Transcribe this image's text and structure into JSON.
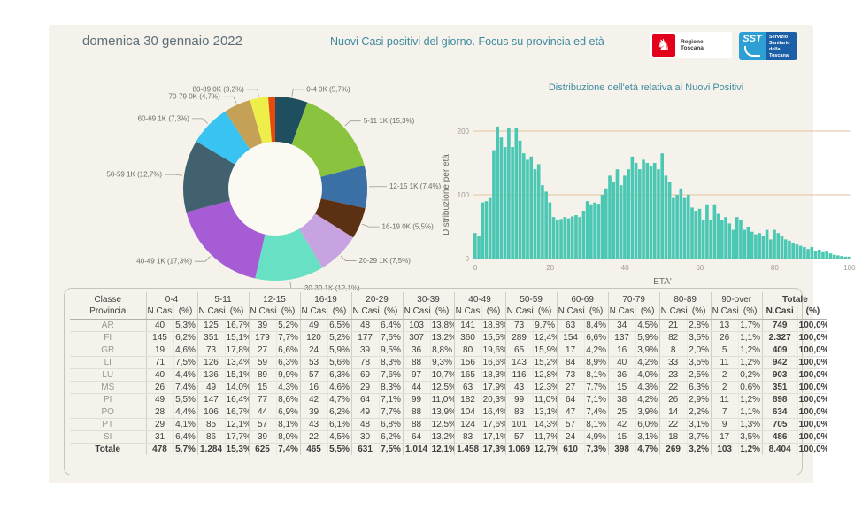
{
  "header": {
    "date_title": "domenica 30 gennaio 2022",
    "main_title": "Nuovi Casi positivi del giorno. Focus su provincia ed età"
  },
  "logos": {
    "regione": "Regione Toscana",
    "sst_abbr": "SST",
    "sst_text": "Servizio Sanitario della Toscana"
  },
  "colors": {
    "panel_bg": "#f4f2ea",
    "accent_teal": "#3f8aa0",
    "bar": "#4bc7b4",
    "gridline": "#e3c49f",
    "axis_text": "#a09a8f",
    "donut_hole": "#faf9f2",
    "label_text": "#6b6b64",
    "leader_line": "#9a9a92"
  },
  "chart_data": [
    {
      "type": "pie",
      "subtype": "donut",
      "categories": [
        "0-4",
        "5-11",
        "12-15",
        "16-19",
        "20-29",
        "30-39",
        "40-49",
        "50-59",
        "60-69",
        "70-79",
        "80-89",
        "90-over"
      ],
      "values": [
        478,
        1284,
        625,
        465,
        631,
        1014,
        1458,
        1069,
        610,
        398,
        269,
        103
      ],
      "labels": [
        "0-4 0K (5,7%)",
        "5-11 1K (15,3%)",
        "12-15 1K (7,4%)",
        "16-19 0K (5,5%)",
        "20-29 1K (7,5%)",
        "30-39 1K (12,1%)",
        "40-49 1K (17,3%)",
        "50-59 1K (12,7%)",
        "60-69 1K (7,3%)",
        "70-79 0K (4,7%)",
        "80-89 0K (3,2%)",
        null
      ],
      "colors": [
        "#1f4e5f",
        "#8ac33e",
        "#3a70a6",
        "#5c3012",
        "#c8a3e2",
        "#68e0c3",
        "#a55cd5",
        "#40616d",
        "#38c3f2",
        "#c5a057",
        "#edee49",
        "#e64a0e"
      ],
      "title": "",
      "legend_position": "none"
    },
    {
      "type": "bar",
      "subtype": "histogram",
      "title": "Distribuzione dell'età relativa ai Nuovi Positivi",
      "xlabel": "ETA'",
      "ylabel": "Distribuzione per età",
      "xticks": [
        0,
        20,
        40,
        60,
        80,
        100
      ],
      "yticks": [
        0,
        100,
        200
      ],
      "ylim": [
        0,
        215
      ],
      "grid": true,
      "values": [
        40,
        35,
        88,
        90,
        95,
        170,
        207,
        190,
        175,
        205,
        175,
        205,
        185,
        165,
        155,
        160,
        140,
        148,
        115,
        105,
        88,
        65,
        60,
        62,
        65,
        63,
        66,
        68,
        65,
        75,
        90,
        85,
        88,
        86,
        100,
        110,
        130,
        120,
        140,
        115,
        130,
        140,
        160,
        150,
        140,
        155,
        150,
        145,
        150,
        140,
        165,
        130,
        120,
        95,
        100,
        110,
        95,
        100,
        80,
        75,
        78,
        60,
        85,
        60,
        85,
        70,
        60,
        65,
        55,
        45,
        65,
        60,
        45,
        50,
        42,
        38,
        40,
        35,
        45,
        30,
        45,
        40,
        35,
        30,
        28,
        25,
        22,
        20,
        18,
        15,
        18,
        12,
        14,
        10,
        12,
        8,
        6,
        5,
        4,
        3,
        3
      ]
    }
  ],
  "table": {
    "corner_top": "Classe",
    "corner_bottom": "Provincia",
    "groups": [
      "0-4",
      "5-11",
      "12-15",
      "16-19",
      "20-29",
      "30-39",
      "40-49",
      "50-59",
      "60-69",
      "70-79",
      "80-89",
      "90-over",
      "Totale"
    ],
    "subheaders": [
      "N.Casi",
      "(%)"
    ],
    "rows": [
      {
        "label": "AR",
        "cells": [
          "40",
          "5,3%",
          "125",
          "16,7%",
          "39",
          "5,2%",
          "49",
          "6,5%",
          "48",
          "6,4%",
          "103",
          "13,8%",
          "141",
          "18,8%",
          "73",
          "9,7%",
          "63",
          "8,4%",
          "34",
          "4,5%",
          "21",
          "2,8%",
          "13",
          "1,7%",
          "749",
          "100,0%"
        ]
      },
      {
        "label": "FI",
        "cells": [
          "145",
          "6,2%",
          "351",
          "15,1%",
          "179",
          "7,7%",
          "120",
          "5,2%",
          "177",
          "7,6%",
          "307",
          "13,2%",
          "360",
          "15,5%",
          "289",
          "12,4%",
          "154",
          "6,6%",
          "137",
          "5,9%",
          "82",
          "3,5%",
          "26",
          "1,1%",
          "2.327",
          "100,0%"
        ]
      },
      {
        "label": "GR",
        "cells": [
          "19",
          "4,6%",
          "73",
          "17,8%",
          "27",
          "6,6%",
          "24",
          "5,9%",
          "39",
          "9,5%",
          "36",
          "8,8%",
          "80",
          "19,6%",
          "65",
          "15,9%",
          "17",
          "4,2%",
          "16",
          "3,9%",
          "8",
          "2,0%",
          "5",
          "1,2%",
          "409",
          "100,0%"
        ]
      },
      {
        "label": "LI",
        "cells": [
          "71",
          "7,5%",
          "126",
          "13,4%",
          "59",
          "6,3%",
          "53",
          "5,6%",
          "78",
          "8,3%",
          "88",
          "9,3%",
          "156",
          "16,6%",
          "143",
          "15,2%",
          "84",
          "8,9%",
          "40",
          "4,2%",
          "33",
          "3,5%",
          "11",
          "1,2%",
          "942",
          "100,0%"
        ]
      },
      {
        "label": "LU",
        "cells": [
          "40",
          "4,4%",
          "136",
          "15,1%",
          "89",
          "9,9%",
          "57",
          "6,3%",
          "69",
          "7,6%",
          "97",
          "10,7%",
          "165",
          "18,3%",
          "116",
          "12,8%",
          "73",
          "8,1%",
          "36",
          "4,0%",
          "23",
          "2,5%",
          "2",
          "0,2%",
          "903",
          "100,0%"
        ]
      },
      {
        "label": "MS",
        "cells": [
          "26",
          "7,4%",
          "49",
          "14,0%",
          "15",
          "4,3%",
          "16",
          "4,6%",
          "29",
          "8,3%",
          "44",
          "12,5%",
          "63",
          "17,9%",
          "43",
          "12,3%",
          "27",
          "7,7%",
          "15",
          "4,3%",
          "22",
          "6,3%",
          "2",
          "0,6%",
          "351",
          "100,0%"
        ]
      },
      {
        "label": "PI",
        "cells": [
          "49",
          "5,5%",
          "147",
          "16,4%",
          "77",
          "8,6%",
          "42",
          "4,7%",
          "64",
          "7,1%",
          "99",
          "11,0%",
          "182",
          "20,3%",
          "99",
          "11,0%",
          "64",
          "7,1%",
          "38",
          "4,2%",
          "26",
          "2,9%",
          "11",
          "1,2%",
          "898",
          "100,0%"
        ]
      },
      {
        "label": "PO",
        "cells": [
          "28",
          "4,4%",
          "106",
          "16,7%",
          "44",
          "6,9%",
          "39",
          "6,2%",
          "49",
          "7,7%",
          "88",
          "13,9%",
          "104",
          "16,4%",
          "83",
          "13,1%",
          "47",
          "7,4%",
          "25",
          "3,9%",
          "14",
          "2,2%",
          "7",
          "1,1%",
          "634",
          "100,0%"
        ]
      },
      {
        "label": "PT",
        "cells": [
          "29",
          "4,1%",
          "85",
          "12,1%",
          "57",
          "8,1%",
          "43",
          "6,1%",
          "48",
          "6,8%",
          "88",
          "12,5%",
          "124",
          "17,6%",
          "101",
          "14,3%",
          "57",
          "8,1%",
          "42",
          "6,0%",
          "22",
          "3,1%",
          "9",
          "1,3%",
          "705",
          "100,0%"
        ]
      },
      {
        "label": "SI",
        "cells": [
          "31",
          "6,4%",
          "86",
          "17,7%",
          "39",
          "8,0%",
          "22",
          "4,5%",
          "30",
          "6,2%",
          "64",
          "13,2%",
          "83",
          "17,1%",
          "57",
          "11,7%",
          "24",
          "4,9%",
          "15",
          "3,1%",
          "18",
          "3,7%",
          "17",
          "3,5%",
          "486",
          "100,0%"
        ]
      },
      {
        "label": "Totale",
        "is_total": true,
        "cells": [
          "478",
          "5,7%",
          "1.284",
          "15,3%",
          "625",
          "7,4%",
          "465",
          "5,5%",
          "631",
          "7,5%",
          "1.014",
          "12,1%",
          "1.458",
          "17,3%",
          "1.069",
          "12,7%",
          "610",
          "7,3%",
          "398",
          "4,7%",
          "269",
          "3,2%",
          "103",
          "1,2%",
          "8.404",
          "100,0%"
        ]
      }
    ]
  }
}
